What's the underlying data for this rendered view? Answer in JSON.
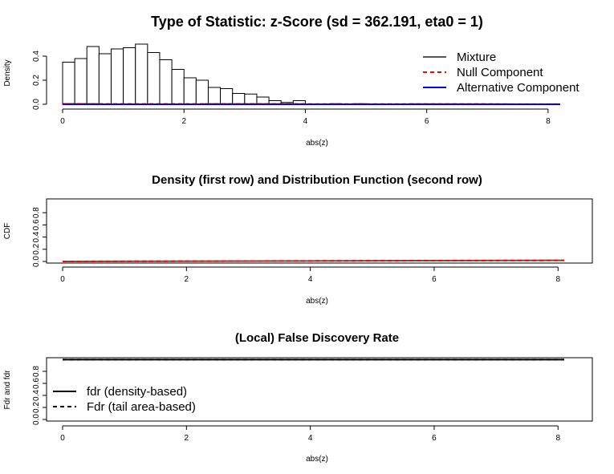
{
  "chart_data": [
    {
      "type": "histogram",
      "title": "Type of Statistic: z-Score  (sd = 362.191, eta0 = 1)",
      "xlabel": "abs(z)",
      "ylabel": "Density",
      "xlim": [
        0,
        8.2
      ],
      "ylim": [
        0,
        0.5
      ],
      "x_ticks": [
        "0",
        "2",
        "4",
        "6",
        "8"
      ],
      "y_ticks": [
        "0.0",
        "0.2",
        "0.4"
      ],
      "bin_width": 0.2,
      "bins_start": 0,
      "values": [
        0.35,
        0.38,
        0.48,
        0.42,
        0.46,
        0.47,
        0.5,
        0.43,
        0.37,
        0.29,
        0.22,
        0.2,
        0.14,
        0.13,
        0.09,
        0.085,
        0.06,
        0.03,
        0.015,
        0.03,
        0.0,
        0.0,
        0.005,
        0.0,
        0.005,
        0.0,
        0.0,
        0.0,
        0.0,
        0.0,
        0.0,
        0.0,
        0.0,
        0.0,
        0.0,
        0.0,
        0.0,
        0.0,
        0.0,
        0.0,
        0.0
      ],
      "series": [
        {
          "name": "Mixture",
          "color": "#555555",
          "style": "solid",
          "x": [
            0,
            8.2
          ],
          "y": [
            0.003,
            0.001
          ]
        },
        {
          "name": "Null Component",
          "color": "#ff0000",
          "style": "dashed",
          "x": [
            0,
            8.2
          ],
          "y": [
            0.003,
            0.001
          ]
        },
        {
          "name": "Alternative Component",
          "color": "#0000ff",
          "style": "solid",
          "x": [
            0,
            8.2
          ],
          "y": [
            0,
            0
          ]
        }
      ],
      "legend": "top-right"
    },
    {
      "type": "line",
      "title": "Density (first row) and Distribution Function (second row)",
      "xlabel": "abs(z)",
      "ylabel": "CDF",
      "xlim": [
        0,
        8.1
      ],
      "ylim": [
        0,
        1
      ],
      "x_ticks": [
        "0",
        "2",
        "4",
        "6",
        "8"
      ],
      "y_ticks": [
        "0.0",
        "0.2",
        "0.4",
        "0.6",
        "0.8"
      ],
      "series": [
        {
          "color": "#555555",
          "style": "solid",
          "x": [
            0,
            8.1
          ],
          "y": [
            0.0,
            0.018
          ]
        },
        {
          "color": "#ff0000",
          "style": "dashed",
          "x": [
            0,
            8.1
          ],
          "y": [
            0.0,
            0.018
          ]
        }
      ]
    },
    {
      "type": "line",
      "title": "(Local) False Discovery Rate",
      "xlabel": "abs(z)",
      "ylabel": "Fdr and fdr",
      "xlim": [
        0,
        8.1
      ],
      "ylim": [
        0,
        1
      ],
      "x_ticks": [
        "0",
        "2",
        "4",
        "6",
        "8"
      ],
      "y_ticks": [
        "0.0",
        "0.2",
        "0.4",
        "0.6",
        "0.8"
      ],
      "series": [
        {
          "name": "fdr (density-based)",
          "color": "#000000",
          "style": "solid",
          "x": [
            0,
            8.1
          ],
          "y": [
            0.995,
            0.995
          ]
        },
        {
          "name": "Fdr (tail area-based)",
          "color": "#000000",
          "style": "dashed",
          "x": [
            0,
            8.1
          ],
          "y": [
            0.995,
            0.995
          ]
        }
      ],
      "legend": "bottom-left"
    }
  ]
}
